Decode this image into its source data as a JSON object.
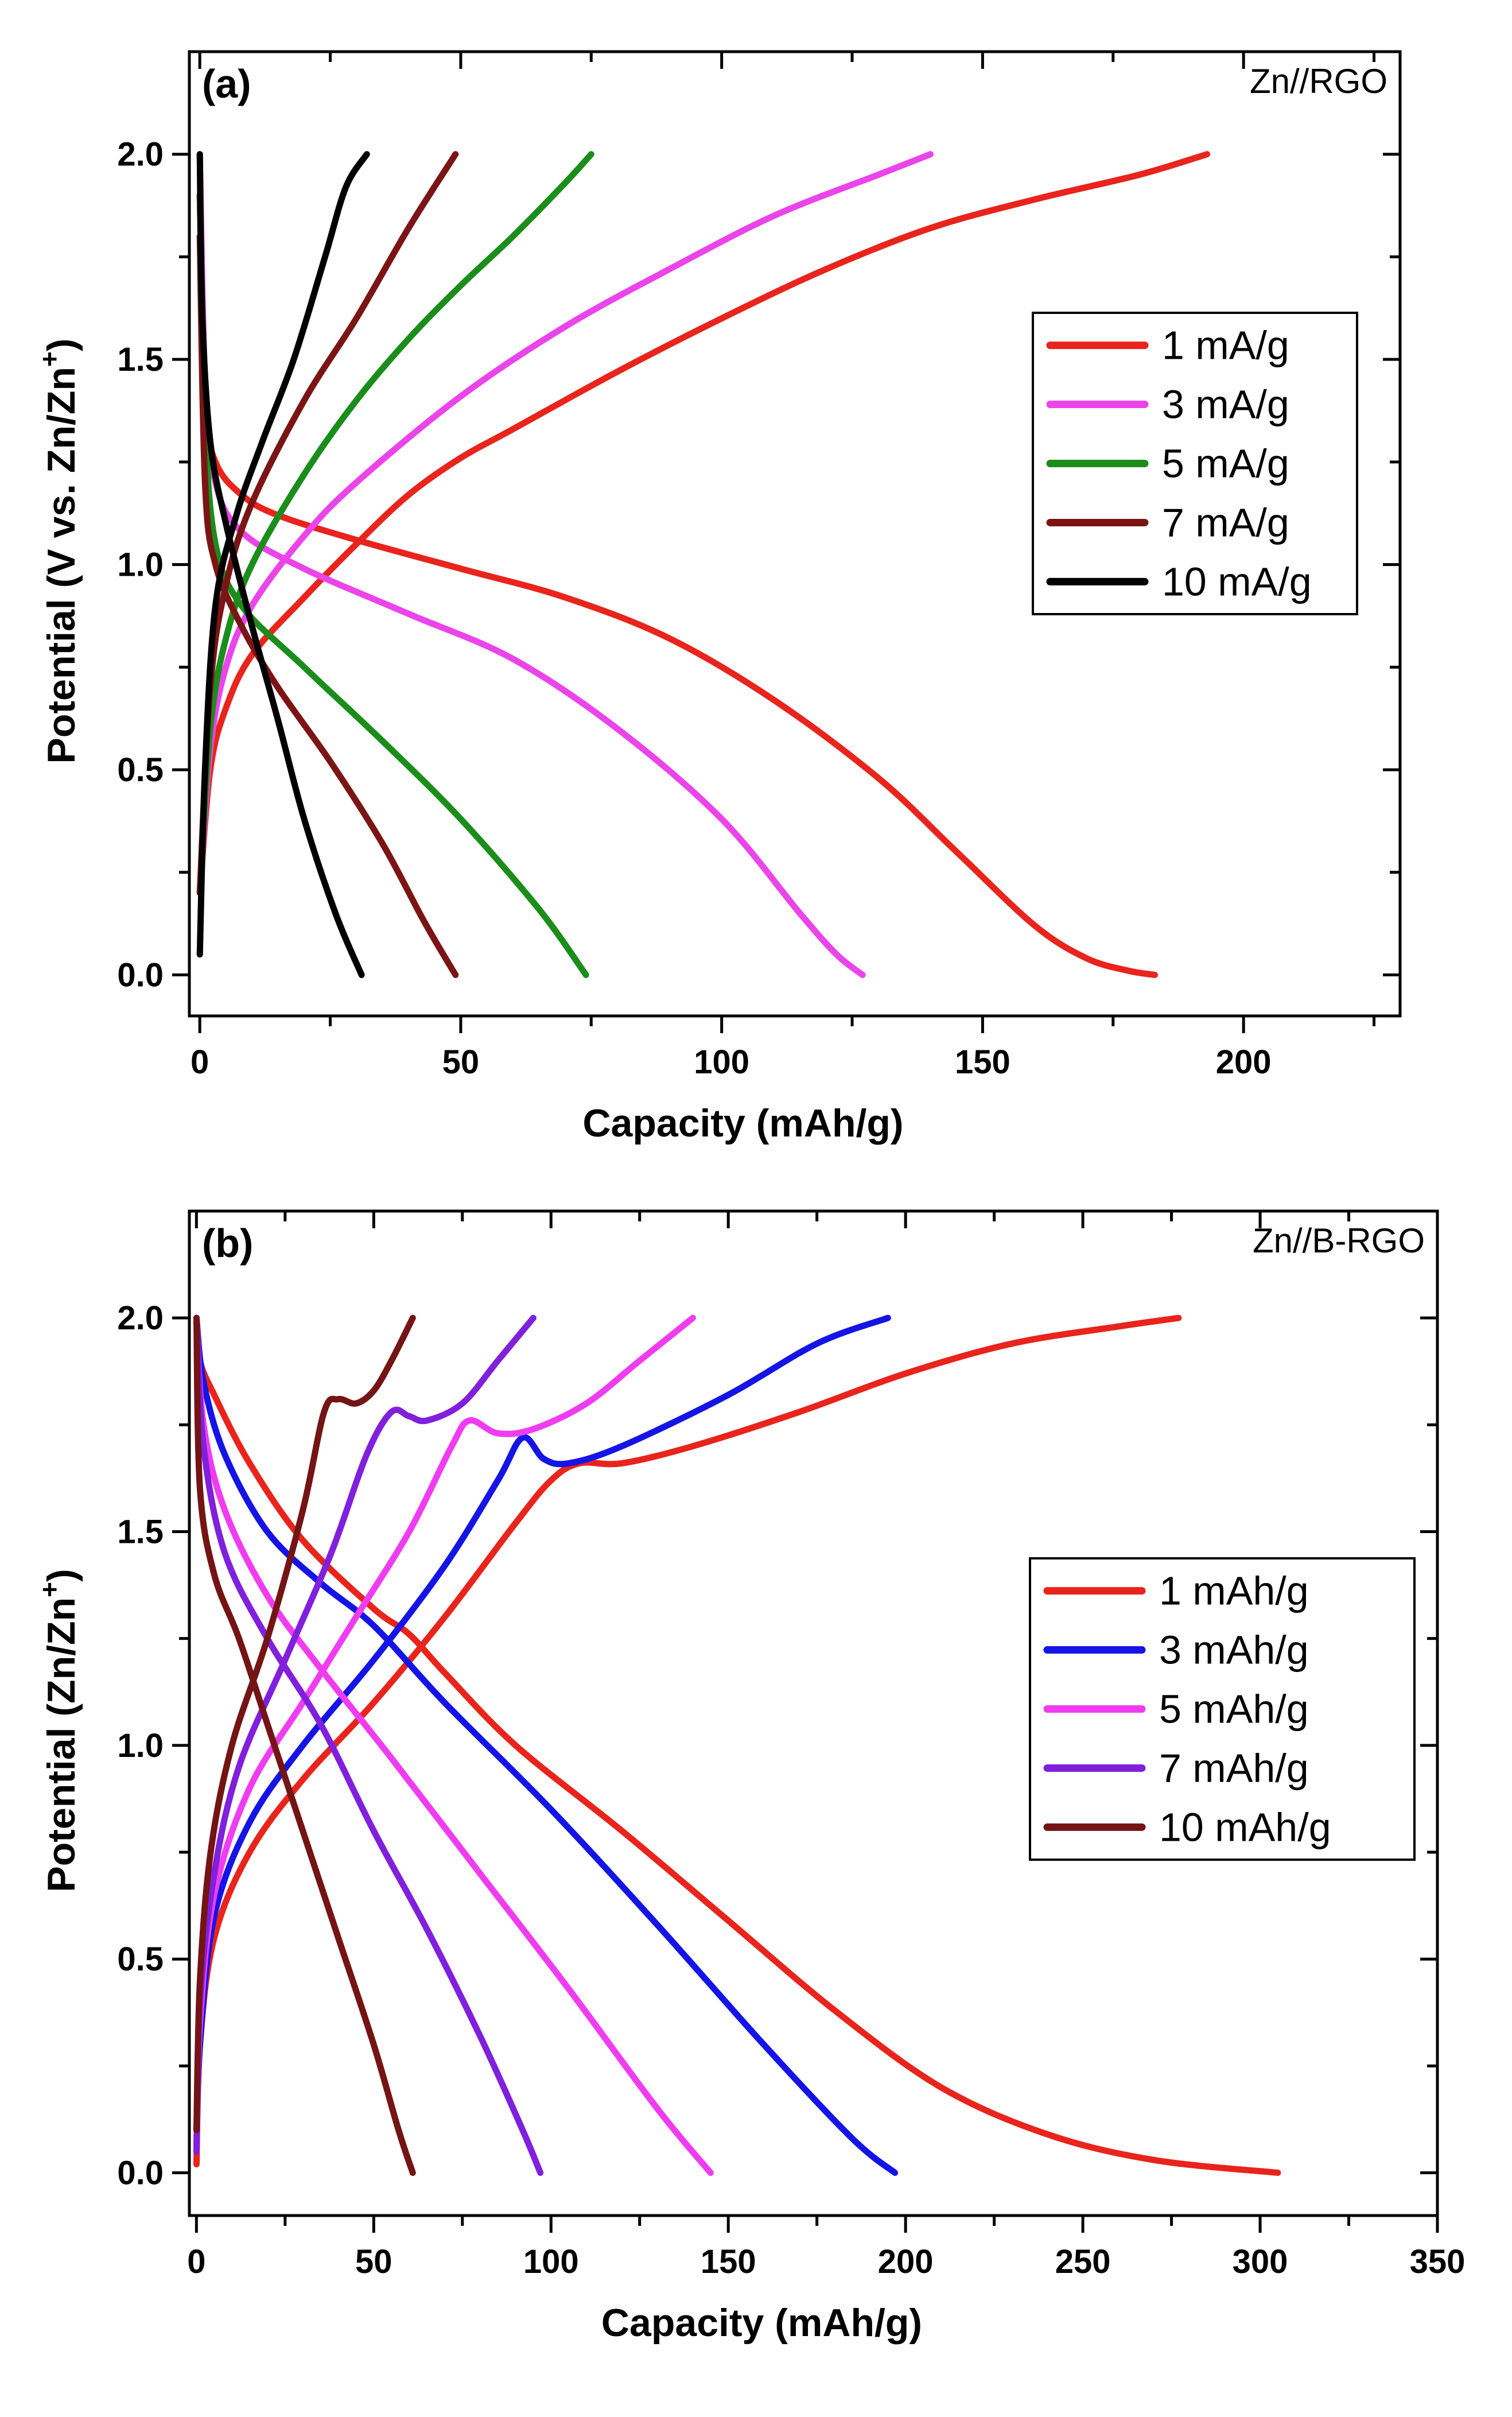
{
  "chart_data": [
    {
      "type": "line",
      "panel": "(a)",
      "corner_label": "Zn//RGO",
      "xlabel": "Capacity (mAh/g)",
      "ylabel": "Potential (V vs. Zn/Zn",
      "ylabel_sup": "+",
      "ylabel_close": ")",
      "xlim": [
        -2,
        230
      ],
      "ylim": [
        -0.1,
        2.25
      ],
      "xticks": [
        0,
        50,
        100,
        150,
        200
      ],
      "yticks": [
        0.0,
        0.5,
        1.0,
        1.5,
        2.0
      ],
      "legend_position": "right-middle",
      "series": [
        {
          "name": "1 mA/g",
          "color": "#e8241c",
          "charge": [
            [
              0,
              0.2
            ],
            [
              2,
              0.5
            ],
            [
              5,
              0.65
            ],
            [
              10,
              0.78
            ],
            [
              20,
              0.92
            ],
            [
              30,
              1.05
            ],
            [
              40,
              1.17
            ],
            [
              50,
              1.26
            ],
            [
              60,
              1.33
            ],
            [
              80,
              1.47
            ],
            [
              100,
              1.6
            ],
            [
              120,
              1.72
            ],
            [
              140,
              1.82
            ],
            [
              160,
              1.89
            ],
            [
              180,
              1.95
            ],
            [
              193,
              2.0
            ]
          ],
          "discharge": [
            [
              0,
              1.9
            ],
            [
              1,
              1.4
            ],
            [
              3,
              1.25
            ],
            [
              8,
              1.17
            ],
            [
              15,
              1.12
            ],
            [
              30,
              1.06
            ],
            [
              50,
              0.99
            ],
            [
              70,
              0.92
            ],
            [
              90,
              0.82
            ],
            [
              110,
              0.67
            ],
            [
              130,
              0.48
            ],
            [
              145,
              0.3
            ],
            [
              160,
              0.12
            ],
            [
              170,
              0.04
            ],
            [
              178,
              0.01
            ],
            [
              183,
              0.0
            ]
          ]
        },
        {
          "name": "3 mA/g",
          "color": "#ea44ea",
          "charge": [
            [
              0,
              0.2
            ],
            [
              2,
              0.55
            ],
            [
              5,
              0.75
            ],
            [
              10,
              0.9
            ],
            [
              20,
              1.07
            ],
            [
              30,
              1.2
            ],
            [
              50,
              1.41
            ],
            [
              70,
              1.58
            ],
            [
              90,
              1.72
            ],
            [
              110,
              1.85
            ],
            [
              130,
              1.95
            ],
            [
              140,
              2.0
            ]
          ],
          "discharge": [
            [
              0,
              2.0
            ],
            [
              1,
              1.45
            ],
            [
              3,
              1.2
            ],
            [
              8,
              1.08
            ],
            [
              20,
              0.99
            ],
            [
              40,
              0.88
            ],
            [
              60,
              0.77
            ],
            [
              80,
              0.6
            ],
            [
              100,
              0.38
            ],
            [
              115,
              0.15
            ],
            [
              122,
              0.05
            ],
            [
              127,
              0.0
            ]
          ]
        },
        {
          "name": "5 mA/g",
          "color": "#1b8d1b",
          "charge": [
            [
              0,
              0.2
            ],
            [
              2,
              0.6
            ],
            [
              5,
              0.82
            ],
            [
              10,
              1.0
            ],
            [
              20,
              1.22
            ],
            [
              30,
              1.4
            ],
            [
              40,
              1.55
            ],
            [
              50,
              1.68
            ],
            [
              60,
              1.8
            ],
            [
              70,
              1.93
            ],
            [
              75,
              2.0
            ]
          ],
          "discharge": [
            [
              0,
              1.9
            ],
            [
              1,
              1.35
            ],
            [
              3,
              1.05
            ],
            [
              8,
              0.9
            ],
            [
              20,
              0.75
            ],
            [
              35,
              0.57
            ],
            [
              50,
              0.38
            ],
            [
              65,
              0.16
            ],
            [
              74,
              0.0
            ]
          ]
        },
        {
          "name": "7 mA/g",
          "color": "#7b1515",
          "charge": [
            [
              0,
              0.2
            ],
            [
              2,
              0.7
            ],
            [
              5,
              0.95
            ],
            [
              10,
              1.15
            ],
            [
              20,
              1.4
            ],
            [
              30,
              1.6
            ],
            [
              40,
              1.82
            ],
            [
              49,
              2.0
            ]
          ],
          "discharge": [
            [
              0,
              1.8
            ],
            [
              1,
              1.2
            ],
            [
              3,
              1.0
            ],
            [
              8,
              0.85
            ],
            [
              15,
              0.7
            ],
            [
              25,
              0.52
            ],
            [
              35,
              0.32
            ],
            [
              43,
              0.13
            ],
            [
              49,
              0.0
            ]
          ]
        },
        {
          "name": "10 mA/g",
          "color": "#000000",
          "charge": [
            [
              0,
              0.05
            ],
            [
              1,
              0.5
            ],
            [
              3,
              0.9
            ],
            [
              7,
              1.12
            ],
            [
              12,
              1.3
            ],
            [
              18,
              1.5
            ],
            [
              24,
              1.75
            ],
            [
              28,
              1.92
            ],
            [
              32,
              2.0
            ]
          ],
          "discharge": [
            [
              0,
              2.0
            ],
            [
              0.5,
              1.6
            ],
            [
              2,
              1.3
            ],
            [
              5,
              1.1
            ],
            [
              10,
              0.85
            ],
            [
              15,
              0.62
            ],
            [
              20,
              0.38
            ],
            [
              26,
              0.15
            ],
            [
              31,
              0.0
            ]
          ]
        }
      ]
    },
    {
      "type": "line",
      "panel": "(b)",
      "corner_label": "Zn//B-RGO",
      "xlabel": "Capacity (mAh/g)",
      "ylabel": "Potential (Zn/Zn",
      "ylabel_sup": "+",
      "ylabel_close": ")",
      "xlim": [
        -2,
        350
      ],
      "ylim": [
        -0.1,
        2.25
      ],
      "xticks": [
        0,
        50,
        100,
        150,
        200,
        250,
        300,
        350
      ],
      "yticks": [
        0.0,
        0.5,
        1.0,
        1.5,
        2.0
      ],
      "legend_position": "right-middle",
      "series": [
        {
          "name": "1 mAh/g",
          "color": "#e8241c",
          "charge": [
            [
              0,
              0.02
            ],
            [
              1,
              0.3
            ],
            [
              5,
              0.55
            ],
            [
              15,
              0.75
            ],
            [
              30,
              0.92
            ],
            [
              50,
              1.1
            ],
            [
              70,
              1.3
            ],
            [
              90,
              1.52
            ],
            [
              100,
              1.62
            ],
            [
              108,
              1.66
            ],
            [
              120,
              1.66
            ],
            [
              140,
              1.7
            ],
            [
              170,
              1.78
            ],
            [
              200,
              1.87
            ],
            [
              230,
              1.94
            ],
            [
              260,
              1.98
            ],
            [
              277,
              2.0
            ]
          ],
          "discharge": [
            [
              0,
              2.0
            ],
            [
              1,
              1.9
            ],
            [
              5,
              1.82
            ],
            [
              15,
              1.66
            ],
            [
              30,
              1.48
            ],
            [
              50,
              1.32
            ],
            [
              60,
              1.26
            ],
            [
              70,
              1.17
            ],
            [
              90,
              1.0
            ],
            [
              120,
              0.8
            ],
            [
              150,
              0.59
            ],
            [
              180,
              0.38
            ],
            [
              210,
              0.2
            ],
            [
              240,
              0.09
            ],
            [
              270,
              0.03
            ],
            [
              305,
              0.0
            ]
          ]
        },
        {
          "name": "3 mAh/g",
          "color": "#1414e6",
          "charge": [
            [
              0,
              0.05
            ],
            [
              1,
              0.3
            ],
            [
              5,
              0.6
            ],
            [
              15,
              0.82
            ],
            [
              30,
              1.0
            ],
            [
              50,
              1.2
            ],
            [
              70,
              1.42
            ],
            [
              85,
              1.62
            ],
            [
              92,
              1.72
            ],
            [
              98,
              1.67
            ],
            [
              105,
              1.66
            ],
            [
              120,
              1.7
            ],
            [
              150,
              1.82
            ],
            [
              175,
              1.94
            ],
            [
              195,
              2.0
            ]
          ],
          "discharge": [
            [
              0,
              2.0
            ],
            [
              2,
              1.85
            ],
            [
              8,
              1.68
            ],
            [
              20,
              1.5
            ],
            [
              35,
              1.38
            ],
            [
              50,
              1.28
            ],
            [
              70,
              1.1
            ],
            [
              100,
              0.85
            ],
            [
              130,
              0.58
            ],
            [
              160,
              0.3
            ],
            [
              185,
              0.08
            ],
            [
              197,
              0.0
            ]
          ]
        },
        {
          "name": "5 mAh/g",
          "color": "#f03cf0",
          "charge": [
            [
              0,
              0.05
            ],
            [
              1,
              0.35
            ],
            [
              5,
              0.65
            ],
            [
              15,
              0.9
            ],
            [
              30,
              1.1
            ],
            [
              45,
              1.3
            ],
            [
              60,
              1.5
            ],
            [
              72,
              1.7
            ],
            [
              77,
              1.76
            ],
            [
              85,
              1.73
            ],
            [
              95,
              1.74
            ],
            [
              110,
              1.8
            ],
            [
              125,
              1.9
            ],
            [
              140,
              2.0
            ]
          ],
          "discharge": [
            [
              0,
              2.0
            ],
            [
              2,
              1.75
            ],
            [
              8,
              1.55
            ],
            [
              20,
              1.35
            ],
            [
              35,
              1.18
            ],
            [
              55,
              0.97
            ],
            [
              80,
              0.7
            ],
            [
              105,
              0.43
            ],
            [
              130,
              0.15
            ],
            [
              145,
              0.0
            ]
          ]
        },
        {
          "name": "7 mAh/g",
          "color": "#8020dc",
          "charge": [
            [
              0,
              0.05
            ],
            [
              1,
              0.4
            ],
            [
              5,
              0.7
            ],
            [
              12,
              0.95
            ],
            [
              25,
              1.2
            ],
            [
              38,
              1.45
            ],
            [
              48,
              1.68
            ],
            [
              55,
              1.78
            ],
            [
              60,
              1.77
            ],
            [
              65,
              1.76
            ],
            [
              75,
              1.8
            ],
            [
              85,
              1.9
            ],
            [
              95,
              2.0
            ]
          ],
          "discharge": [
            [
              0,
              2.0
            ],
            [
              2,
              1.7
            ],
            [
              8,
              1.45
            ],
            [
              20,
              1.25
            ],
            [
              35,
              1.05
            ],
            [
              50,
              0.8
            ],
            [
              65,
              0.57
            ],
            [
              80,
              0.32
            ],
            [
              92,
              0.1
            ],
            [
              97,
              0.0
            ]
          ]
        },
        {
          "name": "10 mAh/g",
          "color": "#741414",
          "charge": [
            [
              0,
              0.1
            ],
            [
              1,
              0.45
            ],
            [
              4,
              0.75
            ],
            [
              10,
              1.0
            ],
            [
              20,
              1.25
            ],
            [
              30,
              1.55
            ],
            [
              36,
              1.78
            ],
            [
              40,
              1.81
            ],
            [
              45,
              1.8
            ],
            [
              50,
              1.83
            ],
            [
              55,
              1.9
            ],
            [
              61,
              2.0
            ]
          ],
          "discharge": [
            [
              0,
              2.0
            ],
            [
              1,
              1.6
            ],
            [
              5,
              1.4
            ],
            [
              12,
              1.25
            ],
            [
              20,
              1.05
            ],
            [
              30,
              0.8
            ],
            [
              40,
              0.55
            ],
            [
              50,
              0.3
            ],
            [
              57,
              0.1
            ],
            [
              61,
              0.0
            ]
          ]
        }
      ]
    }
  ]
}
